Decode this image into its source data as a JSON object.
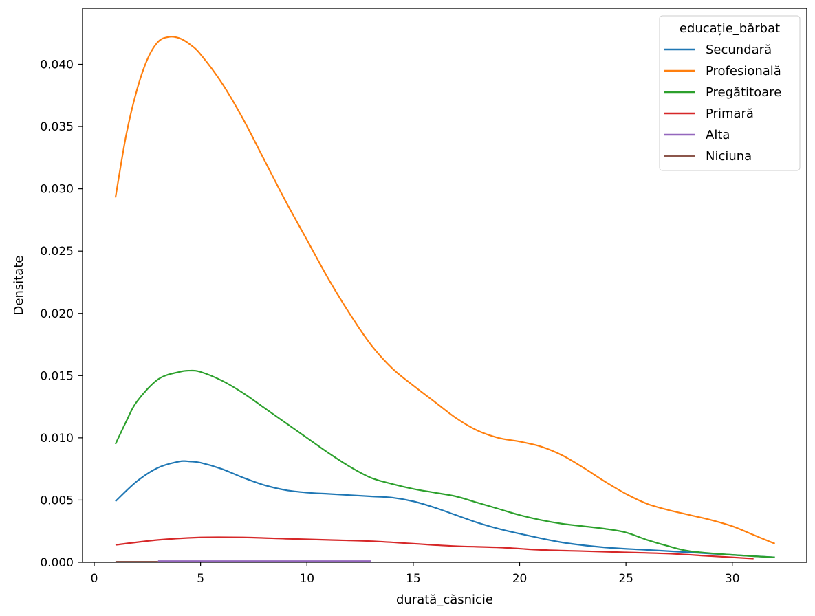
{
  "chart_data": {
    "type": "line",
    "title": "",
    "xlabel": "durată_căsnicie",
    "ylabel": "Densitate",
    "xlim": [
      -0.55,
      33.5
    ],
    "ylim": [
      0,
      0.0445
    ],
    "xticks": [
      0,
      5,
      10,
      15,
      20,
      25,
      30
    ],
    "xtick_labels": [
      "0",
      "5",
      "10",
      "15",
      "20",
      "25",
      "30"
    ],
    "yticks": [
      0,
      0.005,
      0.01,
      0.015,
      0.02,
      0.025,
      0.03,
      0.035,
      0.04
    ],
    "ytick_labels": [
      "0.000",
      "0.005",
      "0.010",
      "0.015",
      "0.020",
      "0.025",
      "0.030",
      "0.035",
      "0.040"
    ],
    "grid": false,
    "legend": {
      "title": "educație_bărbat",
      "position": "top-right"
    },
    "series": [
      {
        "name": "Secundară",
        "color": "#1f77b4",
        "x": [
          1,
          2,
          3,
          4,
          4.5,
          5,
          6,
          7,
          8,
          9,
          10,
          11,
          12,
          13,
          14,
          15,
          16,
          17,
          18,
          19,
          20,
          22,
          24,
          26,
          28,
          30,
          32
        ],
        "y": [
          0.0049,
          0.0065,
          0.0076,
          0.0081,
          0.0081,
          0.008,
          0.0075,
          0.0068,
          0.0062,
          0.0058,
          0.0056,
          0.0055,
          0.0054,
          0.0053,
          0.0052,
          0.0049,
          0.0044,
          0.0038,
          0.0032,
          0.0027,
          0.0023,
          0.0016,
          0.0012,
          0.001,
          0.0008,
          0.0006,
          0.0004
        ]
      },
      {
        "name": "Profesională",
        "color": "#ff7f0e",
        "x": [
          1,
          1.5,
          2,
          2.5,
          3,
          3.5,
          4,
          4.5,
          5,
          6,
          7,
          8,
          9,
          10,
          11,
          12,
          13,
          14,
          15,
          16,
          17,
          18,
          19,
          20,
          21,
          22,
          23,
          24,
          25,
          26,
          27,
          28,
          29,
          30,
          31,
          32
        ],
        "y": [
          0.0293,
          0.0343,
          0.0379,
          0.0404,
          0.0418,
          0.0422,
          0.0421,
          0.0416,
          0.0408,
          0.0385,
          0.0356,
          0.0323,
          0.029,
          0.0259,
          0.0228,
          0.02,
          0.0175,
          0.0156,
          0.0142,
          0.0129,
          0.0116,
          0.0106,
          0.01,
          0.0097,
          0.0093,
          0.0086,
          0.0076,
          0.0065,
          0.0055,
          0.0047,
          0.0042,
          0.0038,
          0.0034,
          0.0029,
          0.0022,
          0.0015
        ]
      },
      {
        "name": "Pregătitoare",
        "color": "#2ca02c",
        "x": [
          1,
          1.5,
          2,
          3,
          4,
          4.5,
          5,
          6,
          7,
          8,
          9,
          10,
          11,
          12,
          13,
          14,
          15,
          16,
          17,
          18,
          19,
          20,
          21,
          22,
          23,
          24,
          25,
          26,
          27,
          28,
          30,
          32
        ],
        "y": [
          0.0095,
          0.0113,
          0.0129,
          0.0147,
          0.0153,
          0.0154,
          0.0153,
          0.0146,
          0.0136,
          0.0124,
          0.0112,
          0.01,
          0.0088,
          0.0077,
          0.0068,
          0.0063,
          0.0059,
          0.0056,
          0.0053,
          0.0048,
          0.0043,
          0.0038,
          0.0034,
          0.0031,
          0.0029,
          0.0027,
          0.0024,
          0.0018,
          0.0013,
          0.0009,
          0.0006,
          0.0004
        ]
      },
      {
        "name": "Primară",
        "color": "#d62728",
        "x": [
          1,
          3,
          5,
          7,
          9,
          11,
          13,
          15,
          17,
          19,
          21,
          23,
          25,
          27,
          29,
          31
        ],
        "y": [
          0.0014,
          0.0018,
          0.002,
          0.002,
          0.0019,
          0.0018,
          0.0017,
          0.0015,
          0.0013,
          0.0012,
          0.001,
          0.0009,
          0.0008,
          0.0007,
          0.0005,
          0.0003
        ]
      },
      {
        "name": "Alta",
        "color": "#9467bd",
        "x": [
          3,
          5,
          7,
          9,
          11,
          13
        ],
        "y": [
          0.0001,
          0.0001,
          0.0001,
          0.0001,
          0.0001,
          0.0001
        ]
      },
      {
        "name": "Niciuna",
        "color": "#8c564b",
        "x": [
          1,
          2,
          3
        ],
        "y": [
          5e-05,
          5e-05,
          5e-05
        ]
      }
    ]
  }
}
